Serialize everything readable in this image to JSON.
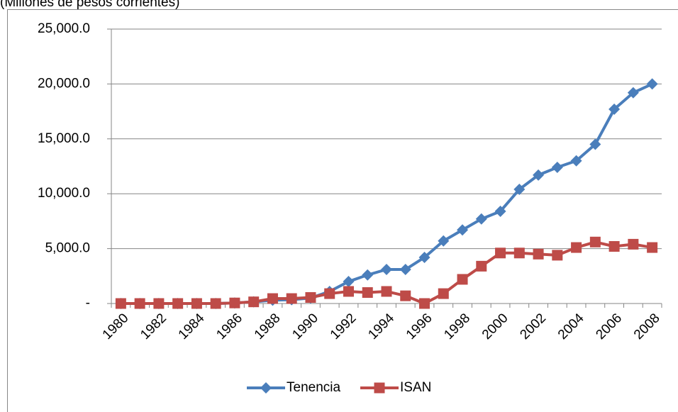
{
  "chart_data": {
    "type": "line",
    "subtitle": "(Millones de pesos corrientes)",
    "categories": [
      "1980",
      null,
      "1982",
      null,
      "1984",
      null,
      "1986",
      null,
      "1988",
      null,
      "1990",
      null,
      "1992",
      null,
      "1994",
      null,
      "1996",
      null,
      "1998",
      null,
      "2000",
      null,
      "2002",
      null,
      "2004",
      null,
      "2006",
      null,
      "2008"
    ],
    "series": [
      {
        "name": "Tenencia",
        "color": "#4a7ebb",
        "marker": "diamond",
        "values": [
          0,
          0,
          0,
          0,
          0,
          0,
          50,
          150,
          300,
          350,
          500,
          1100,
          2000,
          2600,
          3100,
          3100,
          4200,
          5700,
          6700,
          7700,
          8400,
          10400,
          11700,
          12400,
          13000,
          14500,
          17700,
          19200,
          20000
        ]
      },
      {
        "name": "ISAN",
        "color": "#be4b48",
        "marker": "square",
        "values": [
          0,
          0,
          0,
          0,
          0,
          0,
          50,
          150,
          450,
          450,
          550,
          900,
          1100,
          1000,
          1100,
          700,
          0,
          900,
          2200,
          3400,
          4600,
          4600,
          4500,
          4400,
          5100,
          5600,
          5200,
          5400,
          5100
        ]
      }
    ],
    "ylim": [
      0,
      25000
    ],
    "yticks": [
      {
        "value": 0,
        "label": "-"
      },
      {
        "value": 5000,
        "label": "5,000.0"
      },
      {
        "value": 10000,
        "label": "10,000.0"
      },
      {
        "value": 15000,
        "label": "15,000.0"
      },
      {
        "value": 20000,
        "label": "20,000.0"
      },
      {
        "value": 25000,
        "label": "25,000.0"
      }
    ],
    "grid": true,
    "legend": "bottom"
  }
}
